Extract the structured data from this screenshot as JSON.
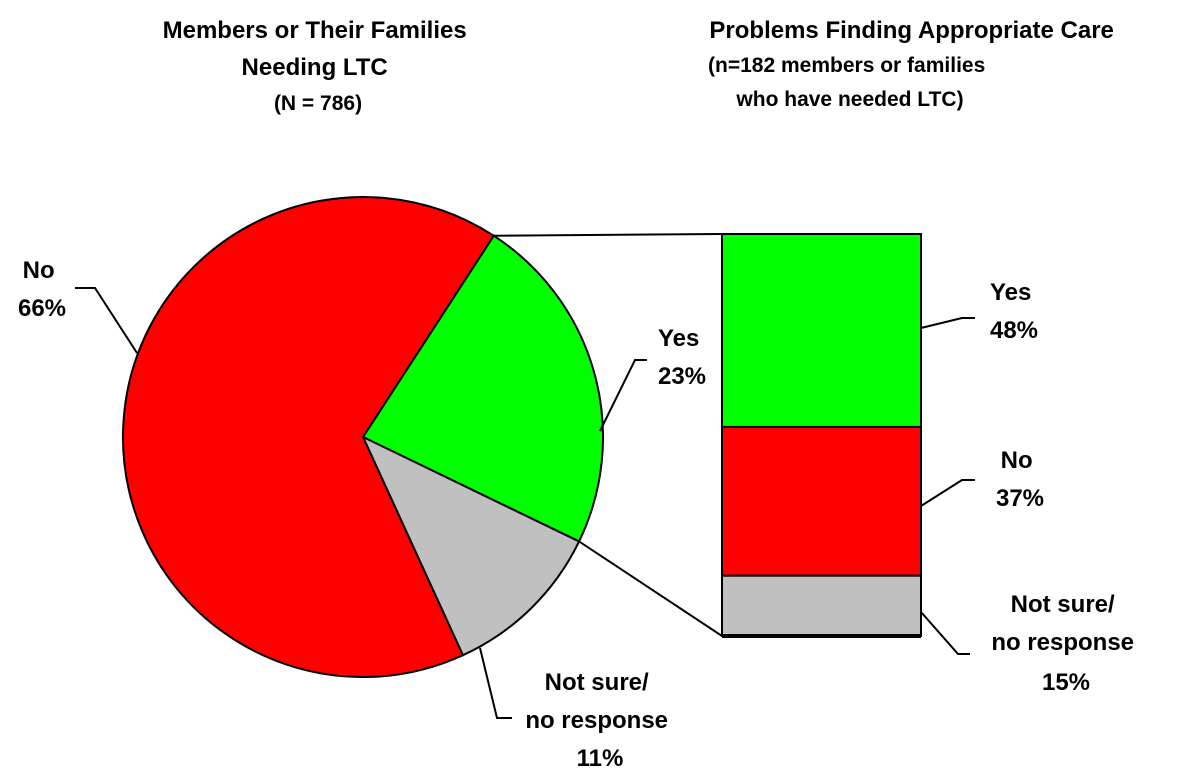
{
  "chart_data": [
    {
      "type": "pie",
      "title": [
        "Members or Their Families",
        "Needing LTC",
        "(N = 786)"
      ],
      "slices": [
        {
          "label": [
            "Yes",
            "23%"
          ],
          "value": 23,
          "color": "#00ff00"
        },
        {
          "label": [
            "Not sure/",
            "no response",
            "11%"
          ],
          "value": 11,
          "color": "#c0c0c0"
        },
        {
          "label": [
            "No",
            "66%"
          ],
          "value": 66,
          "color": "#ff0000"
        }
      ],
      "start_angle_deg": -57,
      "exploded_slice": "Yes"
    },
    {
      "type": "bar",
      "stacked": true,
      "title": [
        "Problems Finding Appropriate Care",
        "(n=182 members or families",
        "who have needed LTC)"
      ],
      "segments": [
        {
          "label": [
            "Yes",
            "48%"
          ],
          "value": 48,
          "color": "#00ff00"
        },
        {
          "label": [
            "No",
            "37%"
          ],
          "value": 37,
          "color": "#ff0000"
        },
        {
          "label": [
            "Not sure/",
            "no response",
            "15%"
          ],
          "value": 15,
          "color": "#c0c0c0"
        }
      ],
      "ylim": [
        0,
        100
      ]
    }
  ]
}
